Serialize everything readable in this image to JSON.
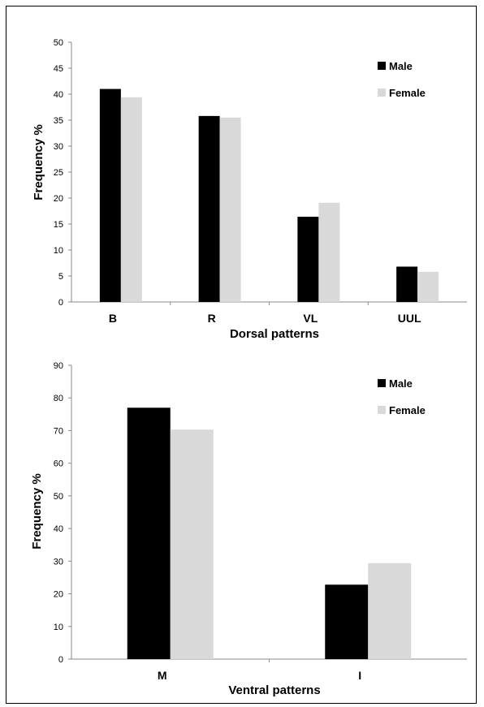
{
  "chart_data": [
    {
      "type": "bar",
      "title": "",
      "xlabel": "Dorsal patterns",
      "ylabel": "Frequency %",
      "ylim": [
        0,
        50
      ],
      "yticks": [
        0,
        5,
        10,
        15,
        20,
        25,
        30,
        35,
        40,
        45,
        50
      ],
      "categories": [
        "B",
        "R",
        "VL",
        "UUL"
      ],
      "series": [
        {
          "name": "Male",
          "color": "#000000",
          "values": [
            41.0,
            35.8,
            16.4,
            6.8
          ]
        },
        {
          "name": "Female",
          "color": "#d9d9d9",
          "values": [
            39.4,
            35.5,
            19.1,
            5.8
          ]
        }
      ],
      "legend": "top-right",
      "grid": false
    },
    {
      "type": "bar",
      "title": "",
      "xlabel": "Ventral patterns",
      "ylabel": "Frequency %",
      "ylim": [
        0,
        90
      ],
      "yticks": [
        0,
        10,
        20,
        30,
        40,
        50,
        60,
        70,
        80,
        90
      ],
      "categories": [
        "M",
        "I"
      ],
      "series": [
        {
          "name": "Male",
          "color": "#000000",
          "values": [
            77.0,
            22.8
          ]
        },
        {
          "name": "Female",
          "color": "#d9d9d9",
          "values": [
            70.3,
            29.4
          ]
        }
      ],
      "legend": "top-right",
      "grid": false
    }
  ]
}
